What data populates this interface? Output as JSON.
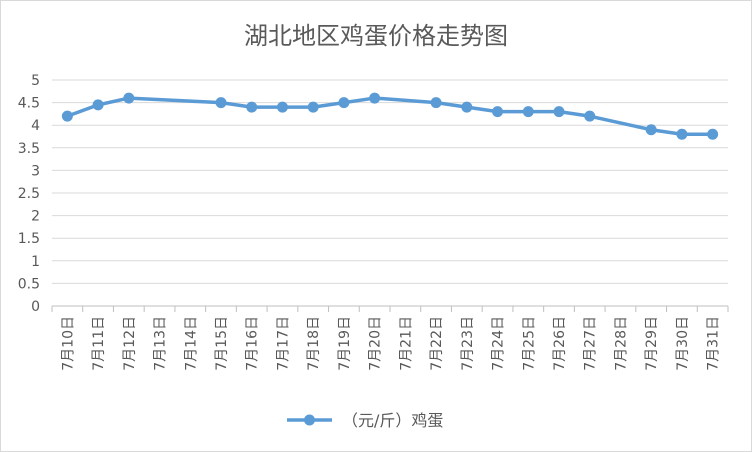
{
  "chart_data": {
    "type": "line",
    "title": "湖北地区鸡蛋价格走势图",
    "xlabel": "",
    "ylabel": "",
    "categories": [
      "7月10日",
      "7月11日",
      "7月12日",
      "7月13日",
      "7月14日",
      "7月15日",
      "7月16日",
      "7月17日",
      "7月18日",
      "7月19日",
      "7月20日",
      "7月21日",
      "7月22日",
      "7月23日",
      "7月24日",
      "7月25日",
      "7月26日",
      "7月27日",
      "7月28日",
      "7月29日",
      "7月30日",
      "7月31日"
    ],
    "series": [
      {
        "name": "（元/斤）鸡蛋",
        "color": "#5b9bd5",
        "values": [
          4.2,
          4.45,
          4.6,
          null,
          null,
          4.5,
          4.4,
          4.4,
          4.4,
          4.5,
          4.6,
          null,
          4.5,
          4.4,
          4.3,
          4.3,
          4.3,
          4.2,
          null,
          3.9,
          3.8,
          3.8
        ]
      }
    ],
    "ylim": [
      0,
      5
    ],
    "yticks": [
      "0",
      "0.5",
      "1",
      "1.5",
      "2",
      "2.5",
      "3",
      "3.5",
      "4",
      "4.5",
      "5"
    ],
    "grid": true,
    "legend": "bottom",
    "gaps": "connected"
  }
}
